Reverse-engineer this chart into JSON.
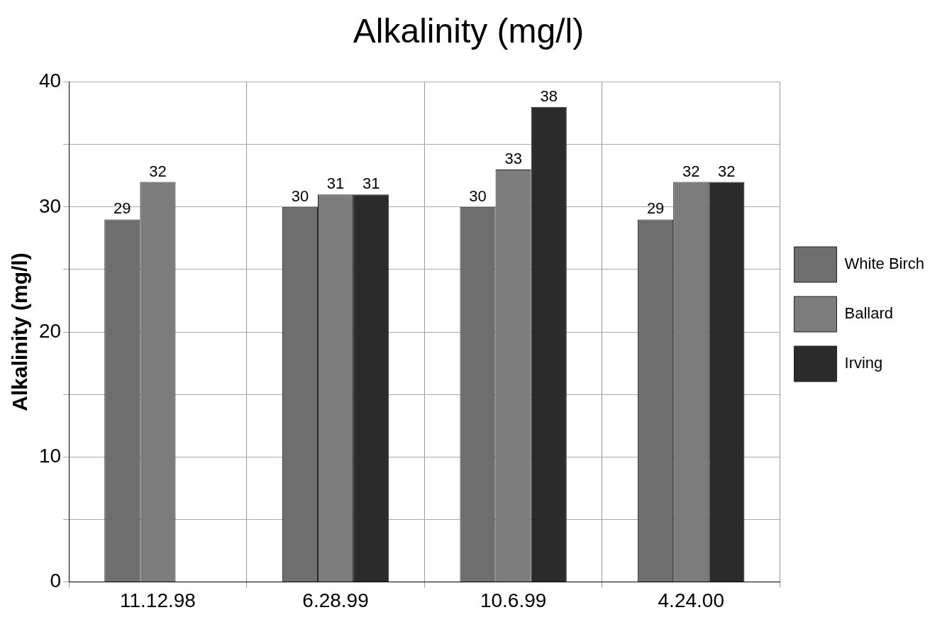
{
  "chart_data": {
    "type": "bar",
    "title": "Alkalinity (mg/l)",
    "ylabel": "Alkalinity (mg/l)",
    "categories": [
      "11.12.98",
      "6.28.99",
      "10.6.99",
      "4.24.00"
    ],
    "series": [
      {
        "name": "White Birch",
        "color": "#6e6e6e",
        "values": [
          29,
          30,
          30,
          29
        ]
      },
      {
        "name": "Ballard",
        "color": "#7c7c7c",
        "values": [
          32,
          31,
          33,
          32
        ]
      },
      {
        "name": "Irving",
        "color": "#2b2b2b",
        "values": [
          null,
          31,
          38,
          32
        ]
      }
    ],
    "ylim": [
      0,
      40
    ],
    "yticks": [
      0,
      {
        "value": 5,
        "label": null
      },
      10,
      {
        "value": 15,
        "label": null
      },
      20,
      {
        "value": 25,
        "label": null
      },
      30,
      {
        "value": 35,
        "label": null
      },
      40
    ],
    "grid": true,
    "legend": "right",
    "data_labels": true
  }
}
